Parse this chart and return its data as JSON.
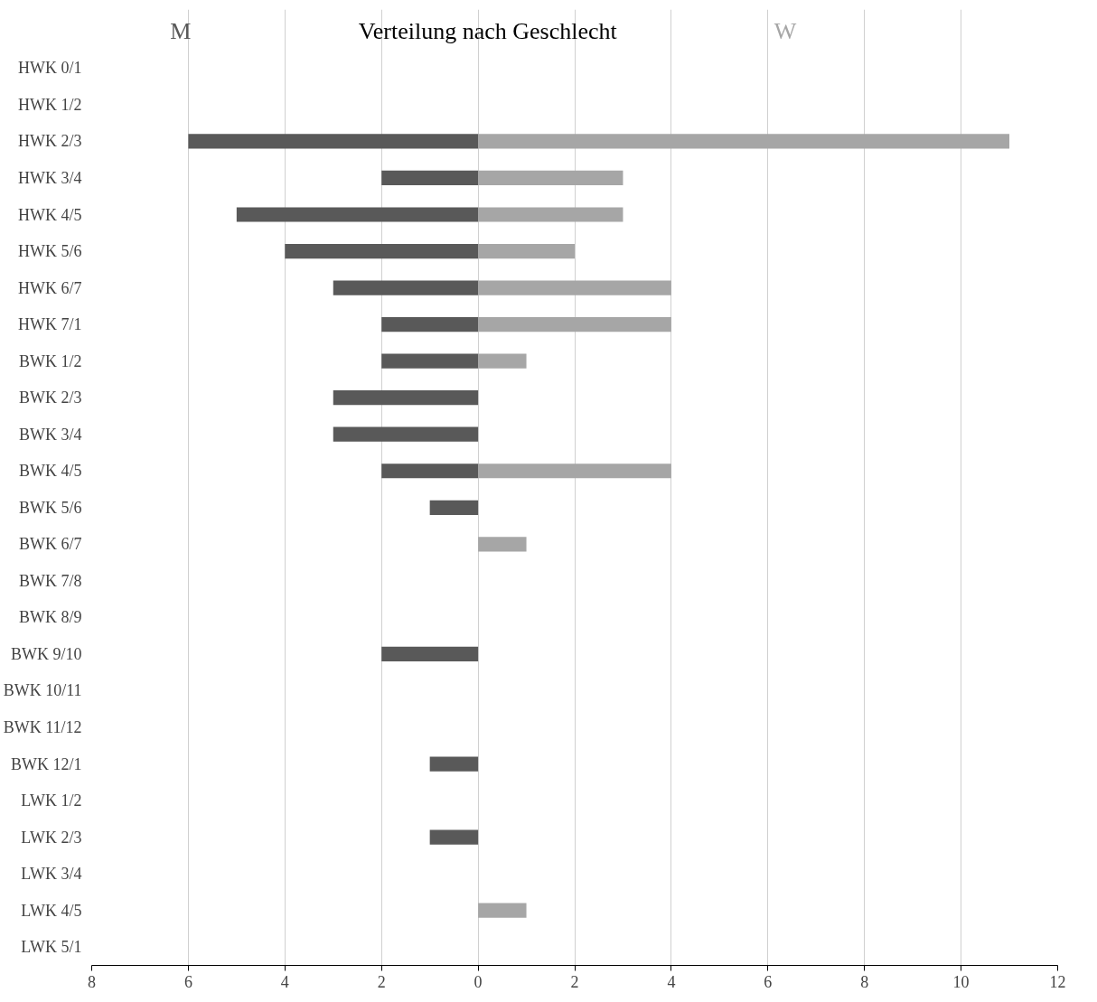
{
  "chart_data": {
    "type": "bar",
    "orientation": "horizontal",
    "title": "Verteilung nach Geschlecht",
    "categories": [
      "HWK 0/1",
      "HWK 1/2",
      "HWK 2/3",
      "HWK 3/4",
      "HWK 4/5",
      "HWK 5/6",
      "HWK 6/7",
      "HWK 7/1",
      "BWK 1/2",
      "BWK 2/3",
      "BWK 3/4",
      "BWK 4/5",
      "BWK 5/6",
      "BWK 6/7",
      "BWK 7/8",
      "BWK 8/9",
      "BWK 9/10",
      "BWK 10/11",
      "BWK 11/12",
      "BWK 12/1",
      "LWK 1/2",
      "LWK 2/3",
      "LWK 3/4",
      "LWK 4/5",
      "LWK 5/1"
    ],
    "series": [
      {
        "name": "M",
        "color": "#595959",
        "values": [
          null,
          null,
          -6,
          -2,
          -5,
          -4,
          -3,
          -2,
          -2,
          -3,
          -3,
          -2,
          -1,
          null,
          null,
          null,
          -2,
          null,
          null,
          -1,
          null,
          -1,
          null,
          null,
          null
        ]
      },
      {
        "name": "W",
        "color": "#a6a6a6",
        "values": [
          null,
          null,
          11,
          3,
          3,
          2,
          4,
          4,
          1,
          null,
          null,
          4,
          null,
          1,
          null,
          null,
          null,
          null,
          null,
          null,
          null,
          null,
          null,
          1,
          null
        ]
      }
    ],
    "xlim": [
      -8,
      12
    ],
    "xticks": [
      {
        "value": -8,
        "label": "8"
      },
      {
        "value": -6,
        "label": "6"
      },
      {
        "value": -4,
        "label": "4"
      },
      {
        "value": -2,
        "label": "2"
      },
      0,
      2,
      4,
      6,
      8,
      10,
      12
    ],
    "grid": "x"
  }
}
